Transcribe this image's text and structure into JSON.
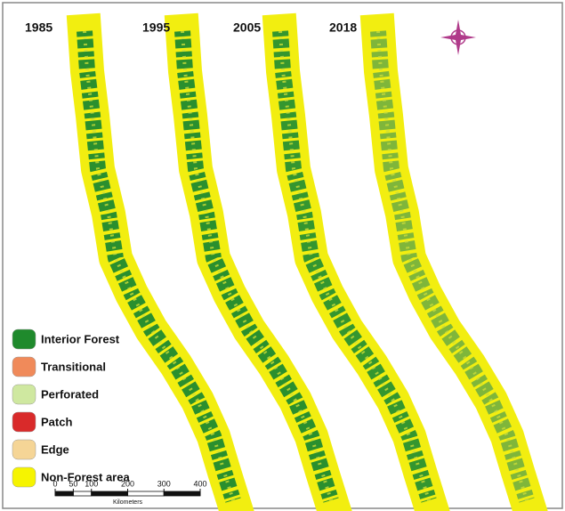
{
  "maps": {
    "panels": [
      {
        "year": "1985"
      },
      {
        "year": "1995"
      },
      {
        "year": "2005"
      },
      {
        "year": "2018"
      }
    ]
  },
  "legend": {
    "items": [
      {
        "label": "Interior Forest",
        "color": "#1f8a2c"
      },
      {
        "label": "Transitional",
        "color": "#f08a5a"
      },
      {
        "label": "Perforated",
        "color": "#cfe8a0"
      },
      {
        "label": "Patch",
        "color": "#d92a2a"
      },
      {
        "label": "Edge",
        "color": "#f5d596"
      },
      {
        "label": "Non-Forest area",
        "color": "#f6f400"
      }
    ]
  },
  "scale_bar": {
    "ticks": [
      0,
      50,
      100,
      200,
      300,
      400
    ],
    "unit": "Kilometers"
  }
}
